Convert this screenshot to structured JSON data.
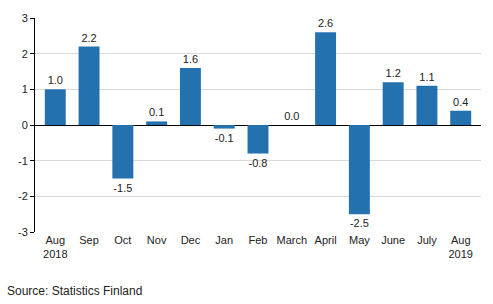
{
  "chart_data": {
    "type": "bar",
    "categories": [
      "Aug\n2018",
      "Sep",
      "Oct",
      "Nov",
      "Dec",
      "Jan",
      "Feb",
      "March",
      "April",
      "May",
      "June",
      "July",
      "Aug\n2019"
    ],
    "values": [
      1.0,
      2.2,
      -1.5,
      0.1,
      1.6,
      -0.1,
      -0.8,
      0.0,
      2.6,
      -2.5,
      1.2,
      1.1,
      0.4
    ],
    "value_labels": [
      "1.0",
      "2.2",
      "-1.5",
      "0.1",
      "1.6",
      "-0.1",
      "-0.8",
      "0.0",
      "2.6",
      "-2.5",
      "1.2",
      "1.1",
      "0.4"
    ],
    "data_labels": true,
    "color": "#2471b0",
    "ylim": [
      -3,
      3
    ],
    "yticks": [
      -3,
      -2,
      -1,
      0,
      1,
      2,
      3
    ],
    "grid": true,
    "source": "Source: Statistics Finland"
  }
}
